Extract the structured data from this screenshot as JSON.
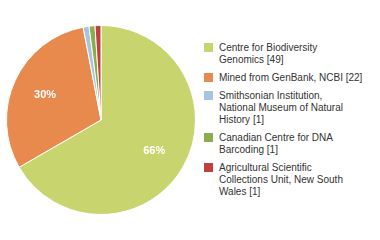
{
  "chart_data": {
    "type": "pie",
    "categories": [
      "Centre for Biodiversity\nGenomics [49]",
      "Mined from GenBank, NCBI [22]",
      "Smithsonian Institution,\nNational Museum of Natural\nHistory [1]",
      "Canadian Centre for DNA\nBarcoding [1]",
      "Agricultural Scientific\nCollections Unit, New South\nWales [1]"
    ],
    "values": [
      66,
      30,
      1,
      1,
      1
    ],
    "value_labels": [
      "66%",
      "30%",
      null,
      null,
      null
    ],
    "data_labels": true,
    "colors": [
      "#c8d46e",
      "#e8894e",
      "#a8c4df",
      "#8aad4e",
      "#c04040"
    ],
    "legend": "right"
  }
}
